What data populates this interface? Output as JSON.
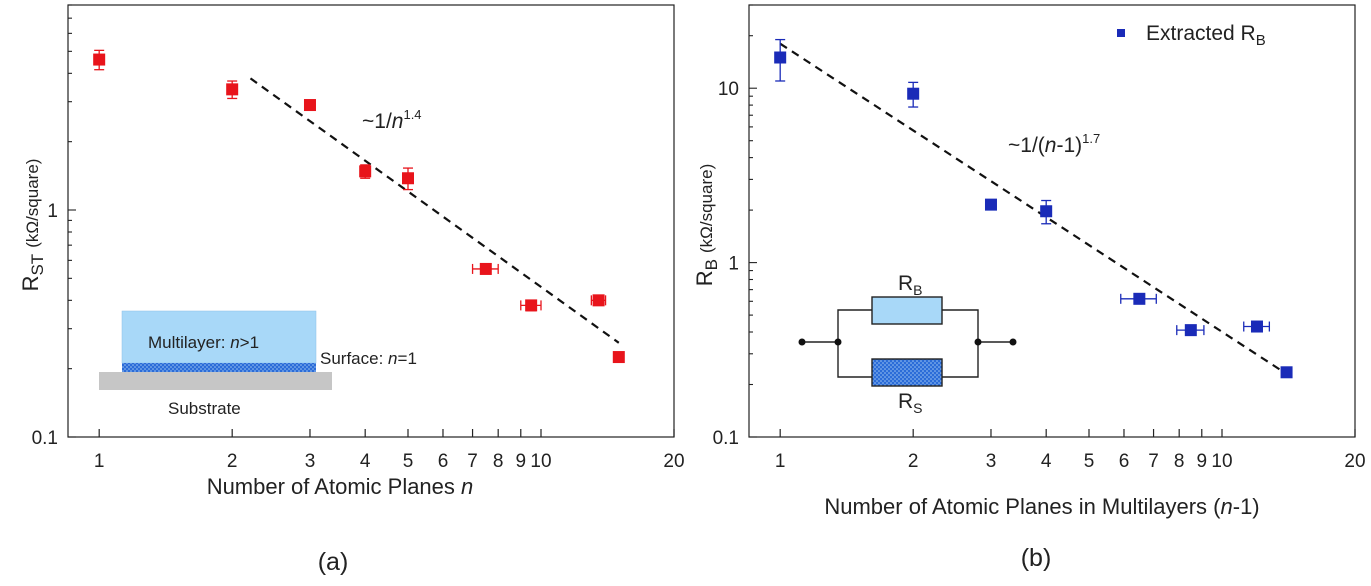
{
  "chart_data": [
    {
      "panel": "(a)",
      "type": "scatter",
      "xscale": "log",
      "yscale": "log",
      "xlim": [
        0.85,
        20
      ],
      "ylim": [
        0.1,
        8
      ],
      "xlabel_text": "Number of Atomic Planes",
      "xlabel_var": "n",
      "ylabel_main": "R",
      "ylabel_sub": "ST",
      "ylabel_unit": "(kΩ/square)",
      "x_ticks": [
        {
          "value": 1,
          "label": "1"
        },
        {
          "value": 2,
          "label": "2"
        },
        {
          "value": 3,
          "label": "3"
        },
        {
          "value": 4,
          "label": "4"
        },
        {
          "value": 5,
          "label": "5"
        },
        {
          "value": 6,
          "label": "6"
        },
        {
          "value": 7,
          "label": "7"
        },
        {
          "value": 8,
          "label": "8"
        },
        {
          "value": 9,
          "label": "9"
        },
        {
          "value": 10,
          "label": "10"
        },
        {
          "value": 20,
          "label": "20"
        }
      ],
      "y_ticks": [
        {
          "value": 0.1,
          "label": "0.1"
        },
        {
          "value": 1,
          "label": "1"
        }
      ],
      "marker_color": "#e8141b",
      "series": [
        {
          "points": [
            {
              "x": 1,
              "y": 4.6,
              "yerr": 0.45,
              "xerr": 0
            },
            {
              "x": 2,
              "y": 3.4,
              "yerr": 0.3,
              "xerr": 0
            },
            {
              "x": 3,
              "y": 2.9,
              "yerr": 0.15,
              "xerr": 0
            },
            {
              "x": 4,
              "y": 1.48,
              "yerr": 0.1,
              "xerr": 0
            },
            {
              "x": 5,
              "y": 1.38,
              "yerr": 0.15,
              "xerr": 0
            },
            {
              "x": 7.5,
              "y": 0.55,
              "yerr": 0.02,
              "xerr": 0.5
            },
            {
              "x": 9.5,
              "y": 0.38,
              "yerr": 0.02,
              "xerr": 0.5
            },
            {
              "x": 13.5,
              "y": 0.4,
              "yerr": 0.02,
              "xerr": 0.5
            },
            {
              "x": 15,
              "y": 0.225,
              "yerr": 0.01,
              "xerr": 0
            }
          ]
        }
      ],
      "fit_line": {
        "x": [
          2.2,
          15
        ],
        "y": [
          3.8,
          0.26
        ],
        "style": "dashed"
      },
      "annotation": {
        "prefix": "~1/",
        "var": "n",
        "exp": "1.4"
      },
      "inset": {
        "multilayer_label": "Multilayer: ",
        "multilayer_var": "n",
        "multilayer_cond": ">1",
        "surface_label": "Surface: ",
        "surface_var": "n",
        "surface_cond": "=1",
        "substrate_label": "Substrate",
        "multilayer_color": "#a8d8f8",
        "surface_color": "#2b6cd8",
        "substrate_color": "#c6c6c6"
      },
      "caption": "(a)"
    },
    {
      "panel": "(b)",
      "type": "scatter",
      "xscale": "log",
      "yscale": "log",
      "xlim": [
        0.85,
        20
      ],
      "ylim": [
        0.1,
        30
      ],
      "xlabel_text": "Number of Atomic Planes in Multilayers (",
      "xlabel_var": "n",
      "xlabel_tail": "-1)",
      "ylabel_main": "R",
      "ylabel_sub": "B",
      "ylabel_unit": "(kΩ/square)",
      "x_ticks": [
        {
          "value": 1,
          "label": "1"
        },
        {
          "value": 2,
          "label": "2"
        },
        {
          "value": 3,
          "label": "3"
        },
        {
          "value": 4,
          "label": "4"
        },
        {
          "value": 5,
          "label": "5"
        },
        {
          "value": 6,
          "label": "6"
        },
        {
          "value": 7,
          "label": "7"
        },
        {
          "value": 8,
          "label": "8"
        },
        {
          "value": 9,
          "label": "9"
        },
        {
          "value": 10,
          "label": "10"
        },
        {
          "value": 20,
          "label": "20"
        }
      ],
      "y_ticks": [
        {
          "value": 0.1,
          "label": "0.1"
        },
        {
          "value": 1,
          "label": "1"
        },
        {
          "value": 10,
          "label": "10"
        }
      ],
      "marker_color": "#1a2bb8",
      "legend": {
        "main": "Extracted R",
        "sub": "B",
        "position": "top-right"
      },
      "series": [
        {
          "name": "Extracted RB",
          "points": [
            {
              "x": 1,
              "y": 15,
              "yerr": 4,
              "xerr": 0
            },
            {
              "x": 2,
              "y": 9.3,
              "yerr": 1.5,
              "xerr": 0
            },
            {
              "x": 3,
              "y": 2.15,
              "yerr": 0.1,
              "xerr": 0
            },
            {
              "x": 4,
              "y": 1.97,
              "yerr": 0.3,
              "xerr": 0
            },
            {
              "x": 6.5,
              "y": 0.62,
              "yerr": 0.03,
              "xerr": 0.6
            },
            {
              "x": 8.5,
              "y": 0.41,
              "yerr": 0.02,
              "xerr": 0.6
            },
            {
              "x": 12,
              "y": 0.43,
              "yerr": 0.02,
              "xerr": 0.8
            },
            {
              "x": 14,
              "y": 0.235,
              "yerr": 0.01,
              "xerr": 0
            }
          ]
        }
      ],
      "fit_line": {
        "x": [
          1,
          14
        ],
        "y": [
          18,
          0.23
        ],
        "style": "dashed"
      },
      "annotation": {
        "prefix": "~1/(",
        "var": "n",
        "tail": "-1)",
        "exp": "1.7"
      },
      "inset": {
        "rb_main": "R",
        "rb_sub": "B",
        "rs_main": "R",
        "rs_sub": "S",
        "rb_color": "#a8d8f8",
        "rs_color": "#2b6cd8"
      },
      "caption": "(b)"
    }
  ]
}
